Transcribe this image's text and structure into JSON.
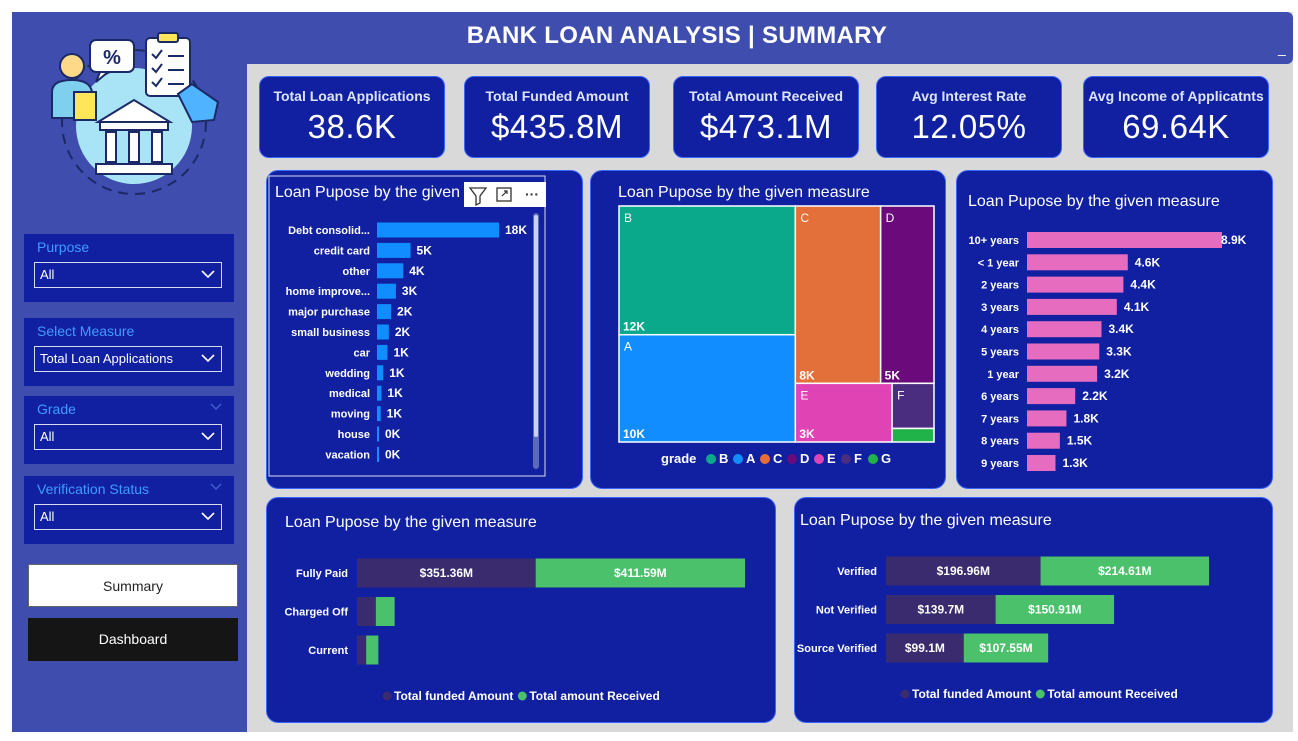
{
  "header": {
    "title": "BANK LOAN ANALYSIS | SUMMARY",
    "minimize_glyph": "_"
  },
  "kpis": [
    {
      "label": "Total Loan Applications",
      "value": "38.6K"
    },
    {
      "label": "Total Funded Amount",
      "value": "$435.8M"
    },
    {
      "label": "Total Amount Received",
      "value": "$473.1M"
    },
    {
      "label": "Avg Interest Rate",
      "value": "12.05%"
    },
    {
      "label": "Avg Income of Applicatnts",
      "value": "69.64K"
    }
  ],
  "filters": {
    "purpose": {
      "label": "Purpose",
      "value": "All"
    },
    "measure": {
      "label": "Select Measure",
      "value": "Total Loan Applications"
    },
    "grade": {
      "label": "Grade",
      "value": "All"
    },
    "verification": {
      "label": "Verification Status",
      "value": "All"
    }
  },
  "nav": {
    "summary": "Summary",
    "dashboard": "Dashboard"
  },
  "logo": {
    "percent": "%"
  },
  "visual_header": {
    "icons": [
      "filter-icon",
      "focus-mode-icon",
      "more-options-icon"
    ],
    "more_glyph": "···"
  },
  "colors": {
    "page_bg": "#d9d9d9",
    "sidebar": "#3f4daf",
    "card": "#1020a0",
    "card_border": "#3a64ff",
    "bar_blue": "#118dff",
    "bar_pink": "#e66cc0",
    "dark_series": "#3a2a6e",
    "green_series": "#4ac16a",
    "grade_B": "#0aa98c",
    "grade_A": "#118dff",
    "grade_C": "#e3703a",
    "grade_D": "#6b0a7a",
    "grade_E": "#e044b4",
    "grade_F": "#4b2d80",
    "grade_G": "#1fb34a"
  },
  "chart_data": [
    {
      "type": "bar",
      "orientation": "horizontal",
      "title": "Loan Pupose by the given measure",
      "title_visible": "Loan Pupose by the given",
      "categories": [
        "Debt consolid...",
        "credit card",
        "other",
        "home improve...",
        "major purchase",
        "small business",
        "car",
        "wedding",
        "medical",
        "moving",
        "house",
        "vacation"
      ],
      "values": [
        18,
        5,
        4,
        3,
        2,
        2,
        1,
        1,
        1,
        1,
        0,
        0
      ],
      "bar_pct": [
        100,
        27.5,
        21.5,
        15.5,
        11.5,
        9.7,
        8.6,
        5.1,
        3.6,
        3.0,
        1.4,
        1.3
      ],
      "data_labels": [
        "18K",
        "5K",
        "4K",
        "3K",
        "2K",
        "2K",
        "1K",
        "1K",
        "1K",
        "1K",
        "0K",
        "0K"
      ],
      "unit": "K"
    },
    {
      "type": "treemap",
      "title": "Loan Pupose by the given measure",
      "legend_title": "grade",
      "legend": [
        "B",
        "A",
        "C",
        "D",
        "E",
        "F",
        "G"
      ],
      "items": [
        {
          "grade": "B",
          "value": 12,
          "label": "12K"
        },
        {
          "grade": "A",
          "value": 10,
          "label": "10K"
        },
        {
          "grade": "C",
          "value": 8,
          "label": "8K"
        },
        {
          "grade": "D",
          "value": 5,
          "label": "5K"
        },
        {
          "grade": "E",
          "value": 3,
          "label": "3K"
        },
        {
          "grade": "F",
          "value": 1,
          "label": ""
        },
        {
          "grade": "G",
          "value": 0.3,
          "label": ""
        }
      ],
      "unit": "K"
    },
    {
      "type": "bar",
      "orientation": "horizontal",
      "title": "Loan Pupose by the given measure",
      "categories": [
        "10+ years",
        "< 1 year",
        "2 years",
        "3 years",
        "4 years",
        "5 years",
        "1 year",
        "6 years",
        "7 years",
        "8 years",
        "9 years"
      ],
      "values": [
        8.9,
        4.6,
        4.4,
        4.1,
        3.4,
        3.3,
        3.2,
        2.2,
        1.8,
        1.5,
        1.3
      ],
      "data_labels": [
        "8.9K",
        "4.6K",
        "4.4K",
        "4.1K",
        "3.4K",
        "3.3K",
        "3.2K",
        "2.2K",
        "1.8K",
        "1.5K",
        "1.3K"
      ],
      "unit": "K"
    },
    {
      "type": "bar",
      "orientation": "horizontal",
      "stacked": true,
      "title": "Loan Pupose by the given measure",
      "categories": [
        "Fully Paid",
        "Charged Off",
        "Current"
      ],
      "series": [
        {
          "name": "Total funded Amount",
          "values": [
            351.36,
            37.0,
            18.0
          ],
          "labels": [
            "$351.36M",
            "",
            ""
          ]
        },
        {
          "name": "Total amount Received",
          "values": [
            411.59,
            37.0,
            24.0
          ],
          "labels": [
            "$411.59M",
            "",
            ""
          ]
        }
      ],
      "unit": "$M"
    },
    {
      "type": "bar",
      "orientation": "horizontal",
      "stacked": true,
      "title": "Loan Pupose by the given measure",
      "categories": [
        "Verified",
        "Not Verified",
        "Source Verified"
      ],
      "series": [
        {
          "name": "Total funded Amount",
          "values": [
            196.96,
            139.7,
            99.1
          ],
          "labels": [
            "$196.96M",
            "$139.7M",
            "$99.1M"
          ]
        },
        {
          "name": "Total amount Received",
          "values": [
            214.61,
            150.91,
            107.55
          ],
          "labels": [
            "$214.61M",
            "$150.91M",
            "$107.55M"
          ]
        }
      ],
      "unit": "$M"
    }
  ]
}
